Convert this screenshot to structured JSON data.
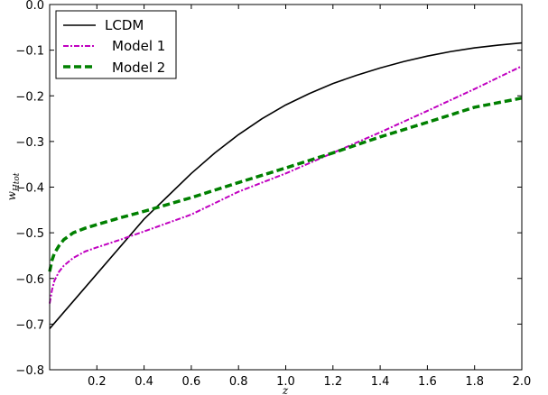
{
  "chart_data": {
    "type": "line",
    "title": "",
    "xlabel": "z",
    "ylabel_base": "w",
    "ylabel_sub": "Htot",
    "xlim": [
      0.0,
      2.0
    ],
    "ylim": [
      -0.8,
      0.0
    ],
    "xticks": [
      "0.2",
      "0.4",
      "0.6",
      "0.8",
      "1.0",
      "1.2",
      "1.4",
      "1.6",
      "1.8",
      "2.0"
    ],
    "yticks": [
      "0.0",
      "−0.1",
      "−0.2",
      "−0.3",
      "−0.4",
      "−0.5",
      "−0.6",
      "−0.7",
      "−0.8"
    ],
    "grid": false,
    "legend_position": "upper-left",
    "series": [
      {
        "name": "LCDM",
        "color": "#000000",
        "style": "solid",
        "x": [
          0.0,
          0.1,
          0.2,
          0.3,
          0.4,
          0.5,
          0.6,
          0.7,
          0.8,
          0.9,
          1.0,
          1.1,
          1.2,
          1.3,
          1.4,
          1.5,
          1.6,
          1.7,
          1.8,
          1.9,
          2.0
        ],
        "y": [
          -0.71,
          -0.65,
          -0.59,
          -0.53,
          -0.47,
          -0.42,
          -0.37,
          -0.325,
          -0.285,
          -0.25,
          -0.22,
          -0.195,
          -0.173,
          -0.155,
          -0.139,
          -0.125,
          -0.113,
          -0.103,
          -0.095,
          -0.089,
          -0.084
        ]
      },
      {
        "name": "Model 1",
        "color": "#c000c0",
        "style": "dashdot",
        "x": [
          0.0,
          0.01,
          0.02,
          0.04,
          0.06,
          0.1,
          0.15,
          0.2,
          0.3,
          0.4,
          0.6,
          0.8,
          1.0,
          1.2,
          1.4,
          1.6,
          1.8,
          2.0
        ],
        "y": [
          -0.655,
          -0.625,
          -0.605,
          -0.585,
          -0.572,
          -0.555,
          -0.541,
          -0.532,
          -0.515,
          -0.497,
          -0.46,
          -0.41,
          -0.37,
          -0.325,
          -0.28,
          -0.233,
          -0.185,
          -0.135
        ]
      },
      {
        "name": "Model 2",
        "color": "#008000",
        "style": "dashed",
        "x": [
          0.0,
          0.01,
          0.02,
          0.04,
          0.06,
          0.1,
          0.15,
          0.2,
          0.3,
          0.4,
          0.6,
          0.8,
          1.0,
          1.2,
          1.4,
          1.6,
          1.8,
          2.0
        ],
        "y": [
          -0.585,
          -0.56,
          -0.545,
          -0.528,
          -0.515,
          -0.5,
          -0.49,
          -0.482,
          -0.467,
          -0.453,
          -0.423,
          -0.39,
          -0.358,
          -0.325,
          -0.29,
          -0.258,
          -0.225,
          -0.205
        ]
      }
    ]
  }
}
